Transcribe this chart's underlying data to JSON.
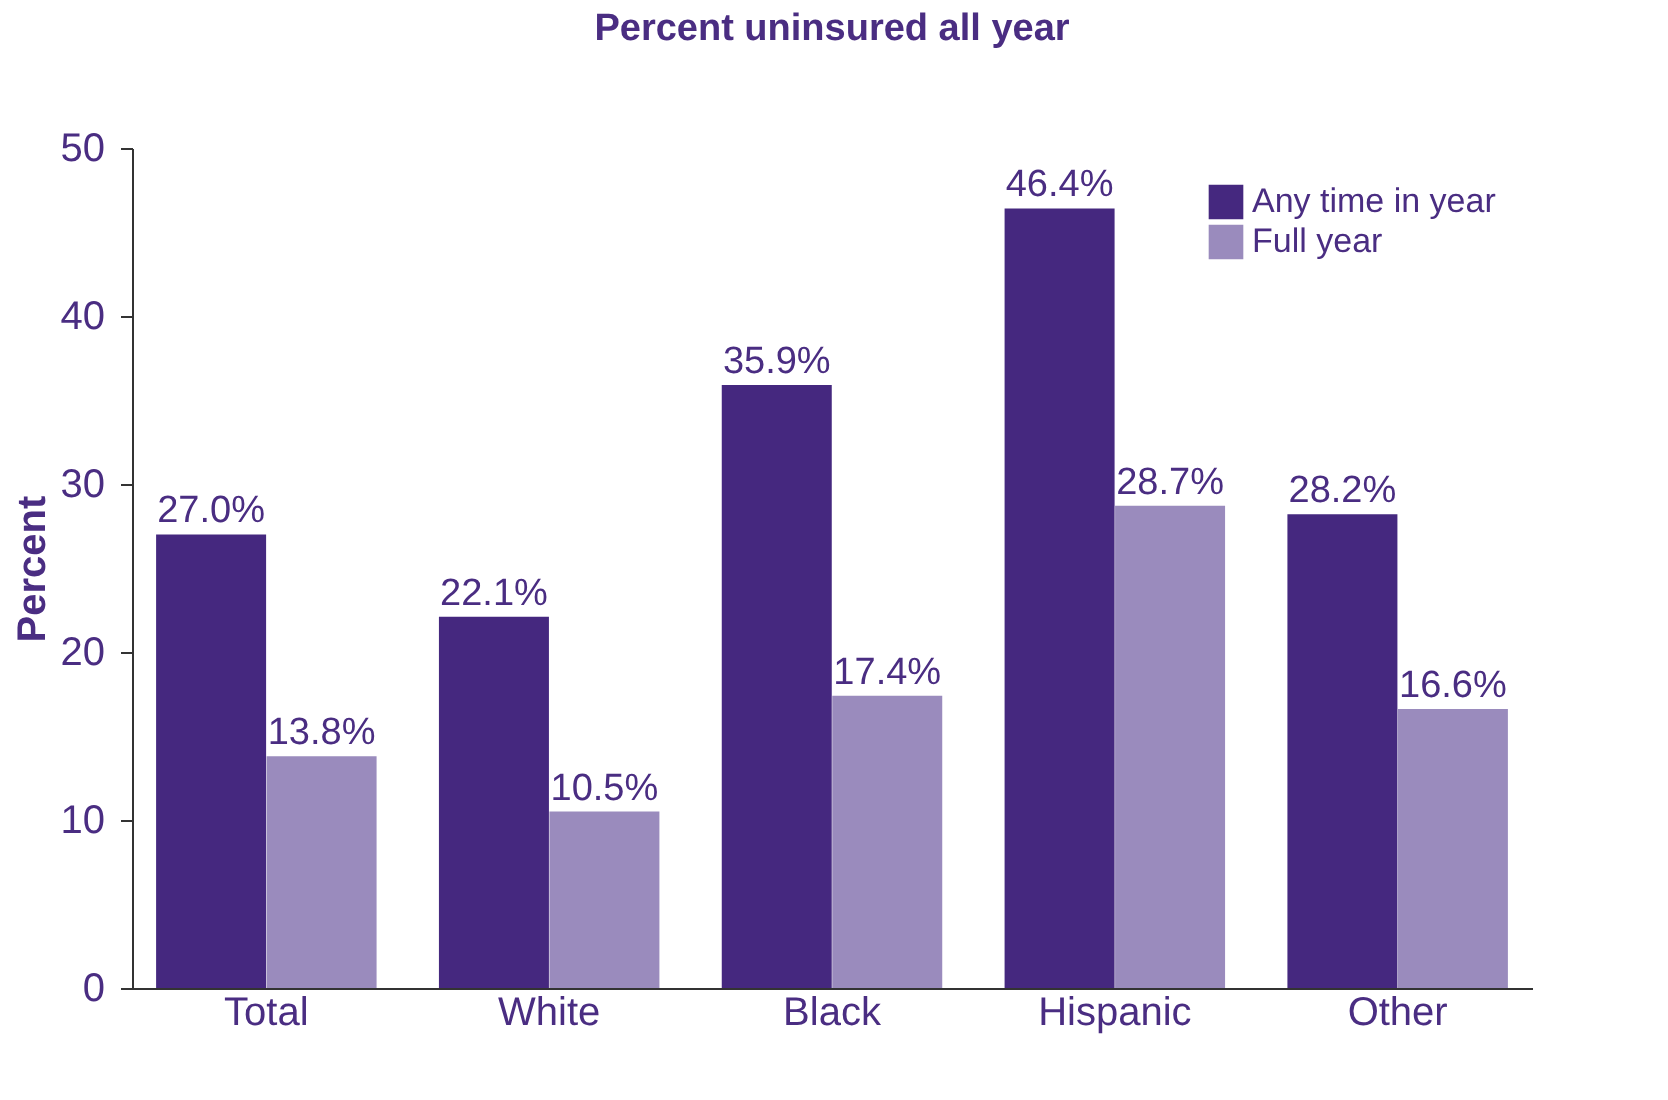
{
  "chart_data": {
    "type": "bar",
    "title": "Percent uninsured all year",
    "ylabel": "Percent",
    "categories": [
      "Total",
      "White",
      "Black",
      "Hispanic",
      "Other"
    ],
    "series": [
      {
        "name": "Any time in year",
        "color": "#45287f",
        "values": [
          27.0,
          22.1,
          35.9,
          46.4,
          28.2
        ],
        "value_labels": [
          "27.0%",
          "22.1%",
          "35.9%",
          "46.4%",
          "28.2%"
        ]
      },
      {
        "name": "Full year",
        "color": "#9a8bbd",
        "values": [
          13.8,
          10.5,
          17.4,
          28.7,
          16.6
        ],
        "value_labels": [
          "13.8%",
          "10.5%",
          "17.4%",
          "28.7%",
          "16.6%"
        ]
      }
    ],
    "ylim": [
      0,
      50
    ],
    "yticks": [
      0,
      10,
      20,
      30,
      40,
      50
    ],
    "grid": false,
    "legend": "top right"
  }
}
